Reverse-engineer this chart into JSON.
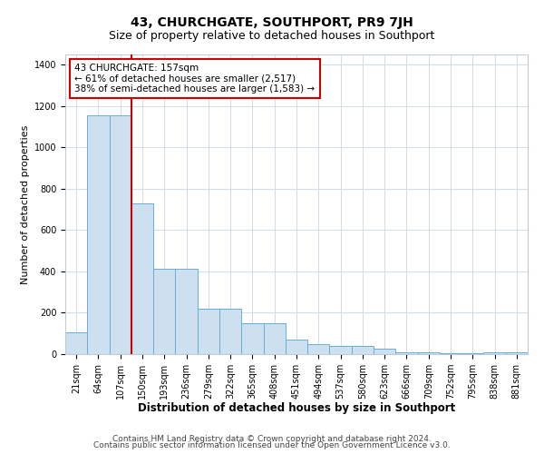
{
  "title": "43, CHURCHGATE, SOUTHPORT, PR9 7JH",
  "subtitle": "Size of property relative to detached houses in Southport",
  "xlabel": "Distribution of detached houses by size in Southport",
  "ylabel": "Number of detached properties",
  "categories": [
    "21sqm",
    "64sqm",
    "107sqm",
    "150sqm",
    "193sqm",
    "236sqm",
    "279sqm",
    "322sqm",
    "365sqm",
    "408sqm",
    "451sqm",
    "494sqm",
    "537sqm",
    "580sqm",
    "623sqm",
    "666sqm",
    "709sqm",
    "752sqm",
    "795sqm",
    "838sqm",
    "881sqm"
  ],
  "values": [
    107,
    1155,
    1155,
    730,
    415,
    415,
    220,
    220,
    148,
    148,
    70,
    50,
    40,
    40,
    25,
    10,
    10,
    5,
    5,
    10,
    10
  ],
  "bar_color": "#cce0f0",
  "bar_edge_color": "#6aaed6",
  "vline_color": "#cc0000",
  "vline_x_index": 3,
  "annotation_text": "43 CHURCHGATE: 157sqm\n← 61% of detached houses are smaller (2,517)\n38% of semi-detached houses are larger (1,583) →",
  "annotation_box_color": "white",
  "annotation_box_edge_color": "#cc0000",
  "ylim": [
    0,
    1450
  ],
  "yticks": [
    0,
    200,
    400,
    600,
    800,
    1000,
    1200,
    1400
  ],
  "footer_line1": "Contains HM Land Registry data © Crown copyright and database right 2024.",
  "footer_line2": "Contains public sector information licensed under the Open Government Licence v3.0.",
  "background_color": "#ffffff",
  "grid_color": "#d0dcea",
  "title_fontsize": 10,
  "subtitle_fontsize": 9,
  "xlabel_fontsize": 8.5,
  "ylabel_fontsize": 8,
  "tick_fontsize": 7,
  "footer_fontsize": 6.5,
  "annotation_fontsize": 7.5
}
